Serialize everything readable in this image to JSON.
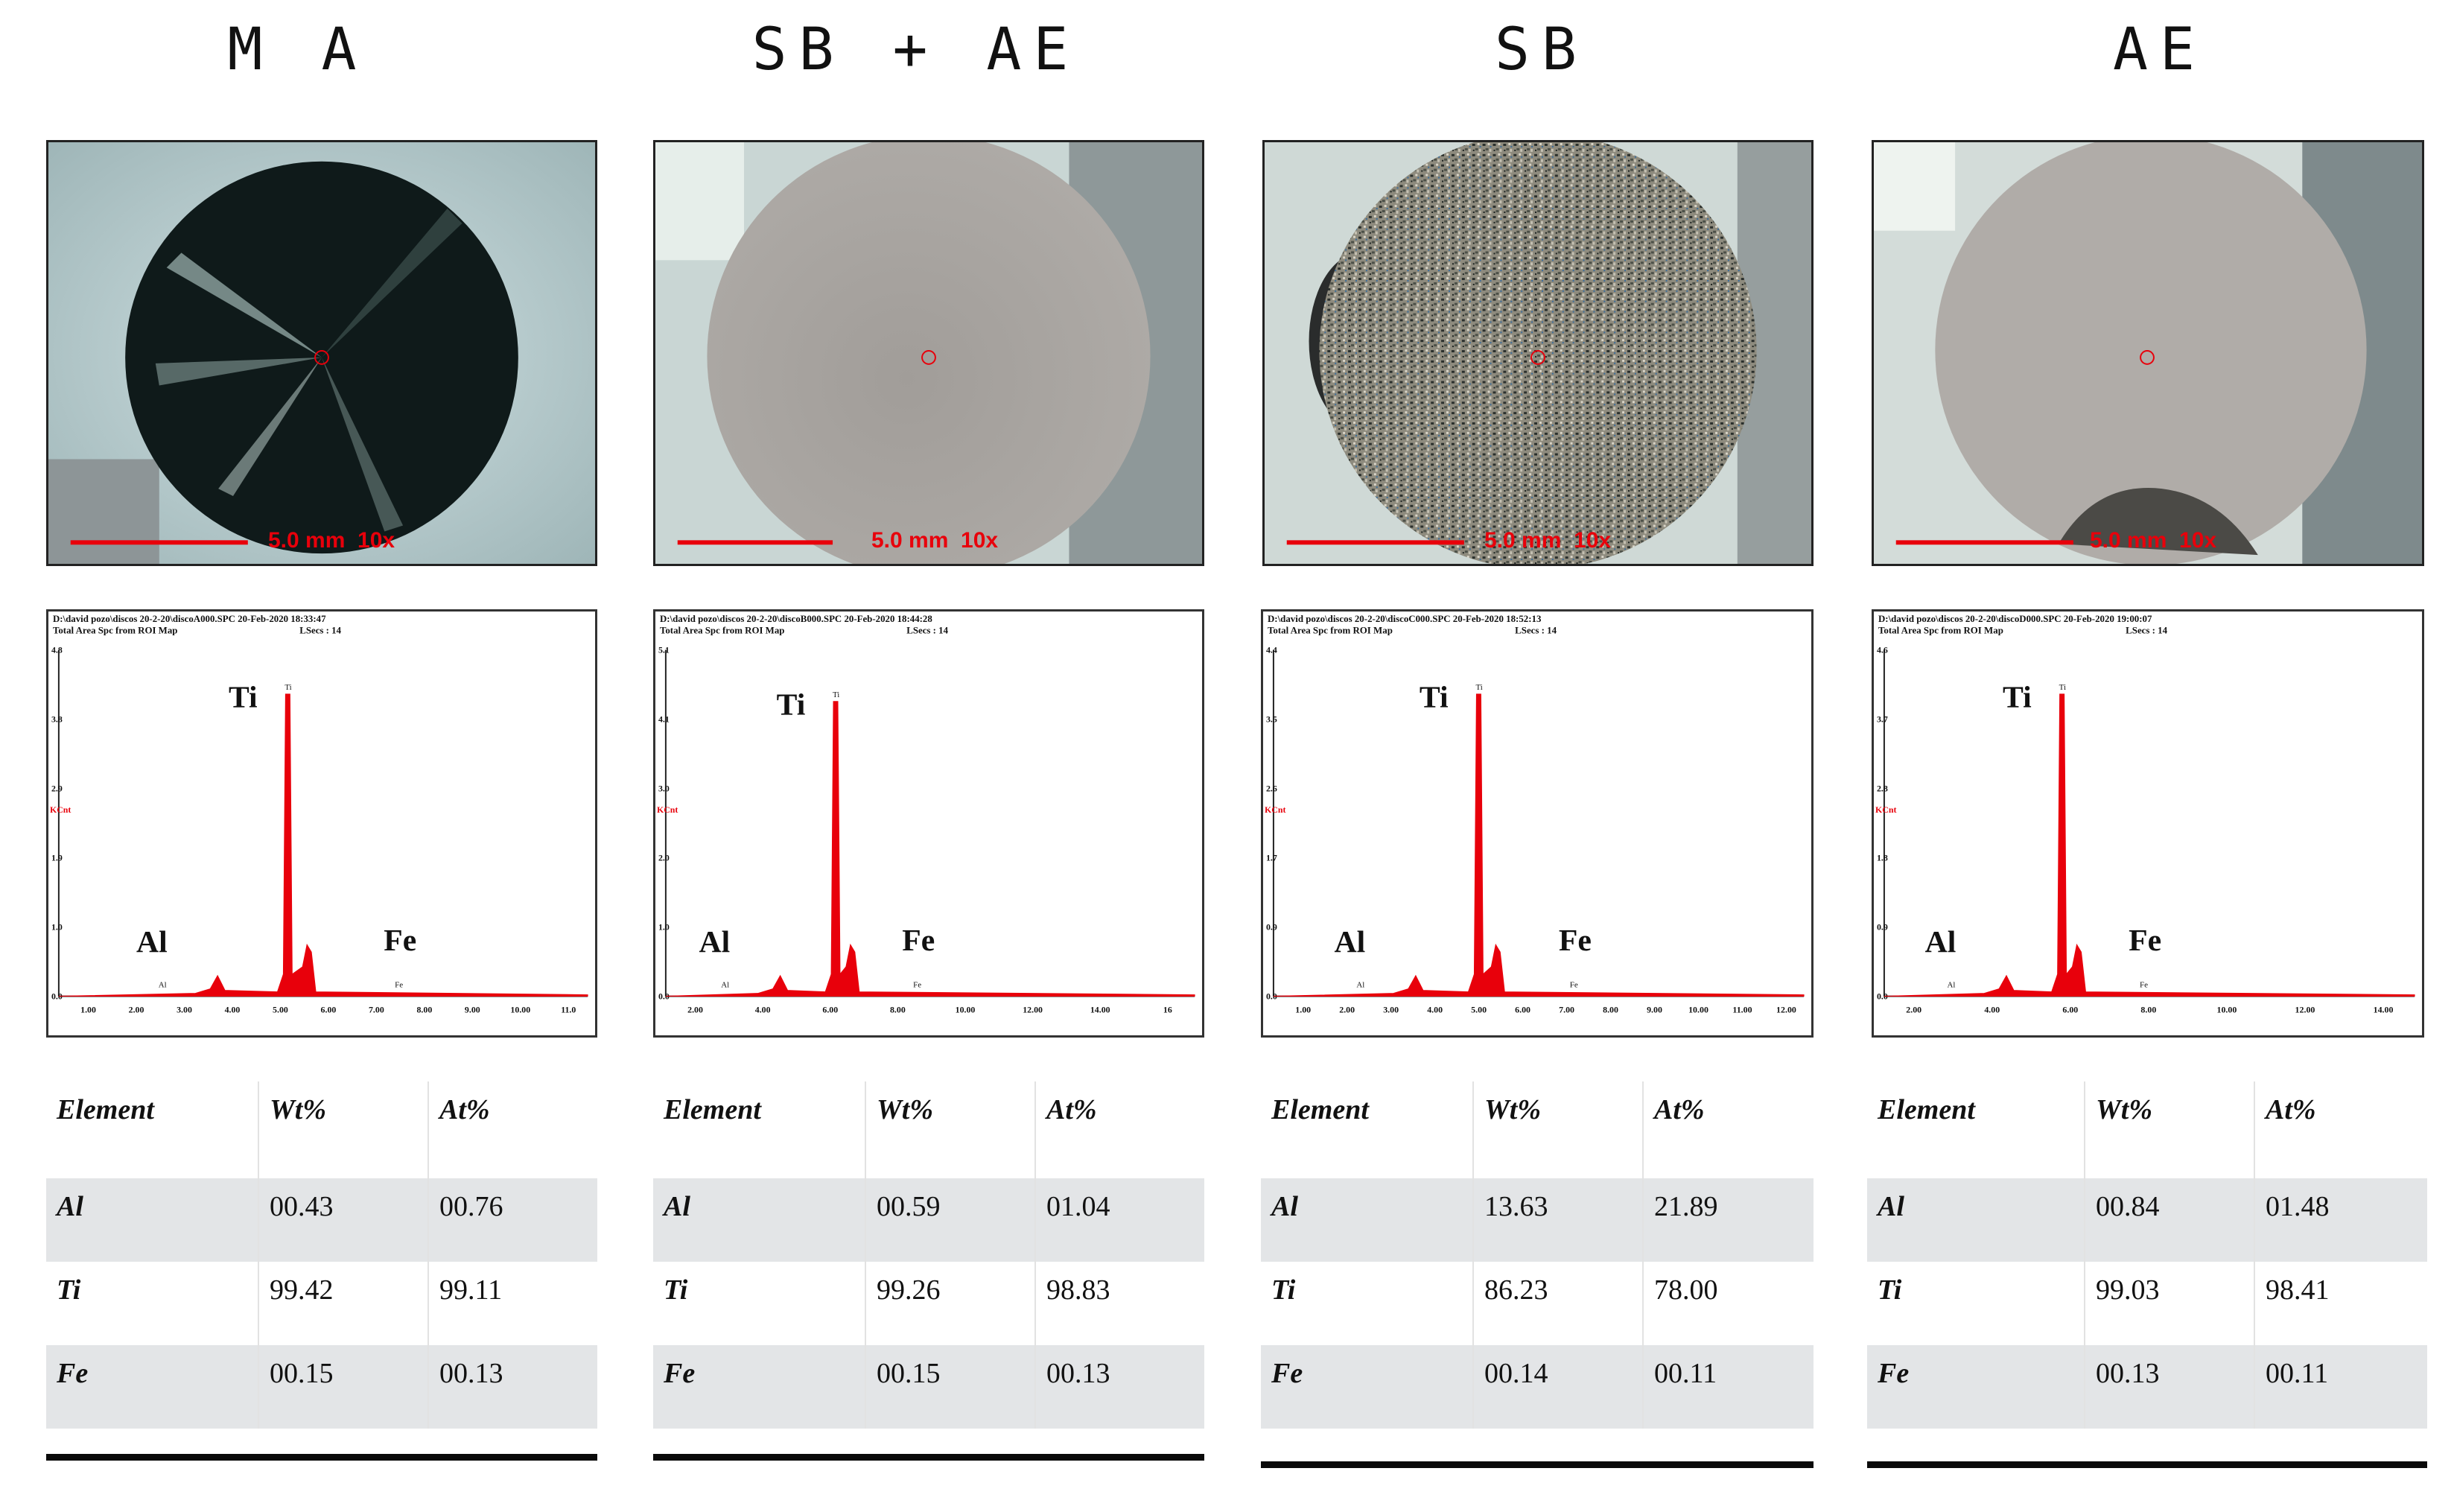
{
  "panels": [
    {
      "title": "M A",
      "photo": {
        "scale_label": "5.0 mm  10x",
        "disc": "dark"
      },
      "spectrum": {
        "header_line1": "D:\\david pozo\\discos 20-2-20\\discoA000.SPC  20-Feb-2020 18:33:47",
        "header_line2": "Total Area Spc from ROI Map",
        "lsecs": "LSecs : 14",
        "y_ticks": [
          "4.8",
          "3.8",
          "2.9",
          "1.9",
          "1.0",
          "0.0"
        ],
        "x_ticks": [
          "1.00",
          "2.00",
          "3.00",
          "4.00",
          "5.00",
          "6.00",
          "7.00",
          "8.00",
          "9.00",
          "10.00",
          "11.0"
        ],
        "y_unit": "KCnt",
        "peak_labels": {
          "al": "Al",
          "ti": "Ti",
          "fe": "Fe",
          "al_small": "Al",
          "ti_small": "Ti",
          "fe_small": "Fe"
        }
      },
      "table": {
        "headers": [
          "Element",
          "Wt%",
          "At%"
        ],
        "rows": [
          {
            "element": "Al",
            "wt": "00.43",
            "at": "00.76"
          },
          {
            "element": "Ti",
            "wt": "99.42",
            "at": "99.11"
          },
          {
            "element": "Fe",
            "wt": "00.15",
            "at": "00.13"
          }
        ]
      }
    },
    {
      "title": "SB + AE",
      "photo": {
        "scale_label": "5.0 mm  10x",
        "disc": "grey"
      },
      "spectrum": {
        "header_line1": "D:\\david pozo\\discos 20-2-20\\discoB000.SPC  20-Feb-2020 18:44:28",
        "header_line2": "Total Area Spc from ROI Map",
        "lsecs": "LSecs : 14",
        "y_ticks": [
          "5.1",
          "4.1",
          "3.0",
          "2.0",
          "1.0",
          "0.0"
        ],
        "x_ticks": [
          "2.00",
          "4.00",
          "6.00",
          "8.00",
          "10.00",
          "12.00",
          "14.00",
          "16"
        ],
        "y_unit": "KCnt",
        "peak_labels": {
          "al": "Al",
          "ti": "Ti",
          "fe": "Fe",
          "al_small": "Al",
          "ti_small": "Ti",
          "fe_small": "Fe"
        }
      },
      "table": {
        "headers": [
          "Element",
          "Wt%",
          "At%"
        ],
        "rows": [
          {
            "element": "Al",
            "wt": "00.59",
            "at": "01.04"
          },
          {
            "element": "Ti",
            "wt": "99.26",
            "at": "98.83"
          },
          {
            "element": "Fe",
            "wt": "00.15",
            "at": "00.13"
          }
        ]
      }
    },
    {
      "title": "SB",
      "photo": {
        "scale_label": "5.0 mm  10x",
        "disc": "speckled"
      },
      "spectrum": {
        "header_line1": "D:\\david pozo\\discos 20-2-20\\discoC000.SPC  20-Feb-2020 18:52:13",
        "header_line2": "Total Area Spc from ROI Map",
        "lsecs": "LSecs : 14",
        "y_ticks": [
          "4.4",
          "3.5",
          "2.6",
          "1.7",
          "0.9",
          "0.0"
        ],
        "x_ticks": [
          "1.00",
          "2.00",
          "3.00",
          "4.00",
          "5.00",
          "6.00",
          "7.00",
          "8.00",
          "9.00",
          "10.00",
          "11.00",
          "12.00"
        ],
        "y_unit": "KCnt",
        "peak_labels": {
          "al": "Al",
          "ti": "Ti",
          "fe": "Fe",
          "al_small": "Al",
          "ti_small": "Ti",
          "fe_small": "Fe"
        }
      },
      "table": {
        "headers": [
          "Element",
          "Wt%",
          "At%"
        ],
        "rows": [
          {
            "element": "Al",
            "wt": "13.63",
            "at": "21.89"
          },
          {
            "element": "Ti",
            "wt": "86.23",
            "at": "78.00"
          },
          {
            "element": "Fe",
            "wt": "00.14",
            "at": "00.11"
          }
        ]
      }
    },
    {
      "title": "AE",
      "photo": {
        "scale_label": "5.0 mm  10x",
        "disc": "grey-dark-bottom"
      },
      "spectrum": {
        "header_line1": "D:\\david pozo\\discos 20-2-20\\discoD000.SPC  20-Feb-2020 19:00:07",
        "header_line2": "Total Area Spc from ROI Map",
        "lsecs": "LSecs : 14",
        "y_ticks": [
          "4.6",
          "3.7",
          "2.8",
          "1.8",
          "0.9",
          "0.0"
        ],
        "x_ticks": [
          "2.00",
          "4.00",
          "6.00",
          "8.00",
          "10.00",
          "12.00",
          "14.00"
        ],
        "y_unit": "KCnt",
        "peak_labels": {
          "al": "Al",
          "ti": "Ti",
          "fe": "Fe",
          "al_small": "Al",
          "ti_small": "Ti",
          "fe_small": "Fe"
        }
      },
      "table": {
        "headers": [
          "Element",
          "Wt%",
          "At%"
        ],
        "rows": [
          {
            "element": "Al",
            "wt": "00.84",
            "at": "01.48"
          },
          {
            "element": "Ti",
            "wt": "99.03",
            "at": "98.41"
          },
          {
            "element": "Fe",
            "wt": "00.13",
            "at": "00.11"
          }
        ]
      }
    }
  ],
  "colors": {
    "spectrum_fill": "#e8000b",
    "scale_bar": "#e8000b",
    "table_shade": "#e3e5e7",
    "frame": "#222222"
  }
}
